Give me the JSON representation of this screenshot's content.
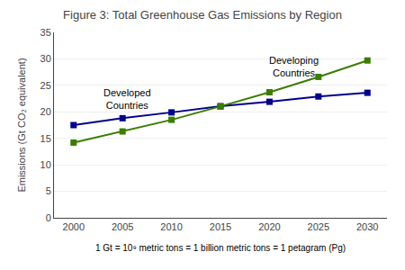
{
  "chart_data": {
    "type": "line",
    "title": "Figure 3: Total Greenhouse Gas Emissions by Region",
    "ylabel": "Emissions (Gt CO₂ equivalent)",
    "note": "1 Gt = 10⁹ metric tons = 1 billion metric tons = 1 petagram (Pg)",
    "x": [
      2000,
      2005,
      2010,
      2015,
      2020,
      2025,
      2030
    ],
    "series": [
      {
        "color": "#00008B",
        "values": [
          17.5,
          18.8,
          19.9,
          21.05,
          21.9,
          22.9,
          23.6
        ]
      },
      {
        "color": "#3a7d00",
        "values": [
          14.2,
          16.3,
          18.5,
          21.05,
          23.7,
          26.6,
          29.7
        ]
      }
    ],
    "marker": "square",
    "xlim": [
      1998,
      2032
    ],
    "xticks": [
      2000,
      2005,
      2010,
      2015,
      2020,
      2025,
      2030
    ],
    "ylim": [
      0,
      35
    ],
    "yticks": [
      0,
      5,
      10,
      15,
      20,
      25,
      30,
      35
    ],
    "grid": true,
    "annotations": [
      {
        "text": "Developed\nCountries",
        "x": 2005.5,
        "y": 22.5
      },
      {
        "text": "Developing\nCountries",
        "x": 2022.5,
        "y": 28.5
      }
    ]
  }
}
